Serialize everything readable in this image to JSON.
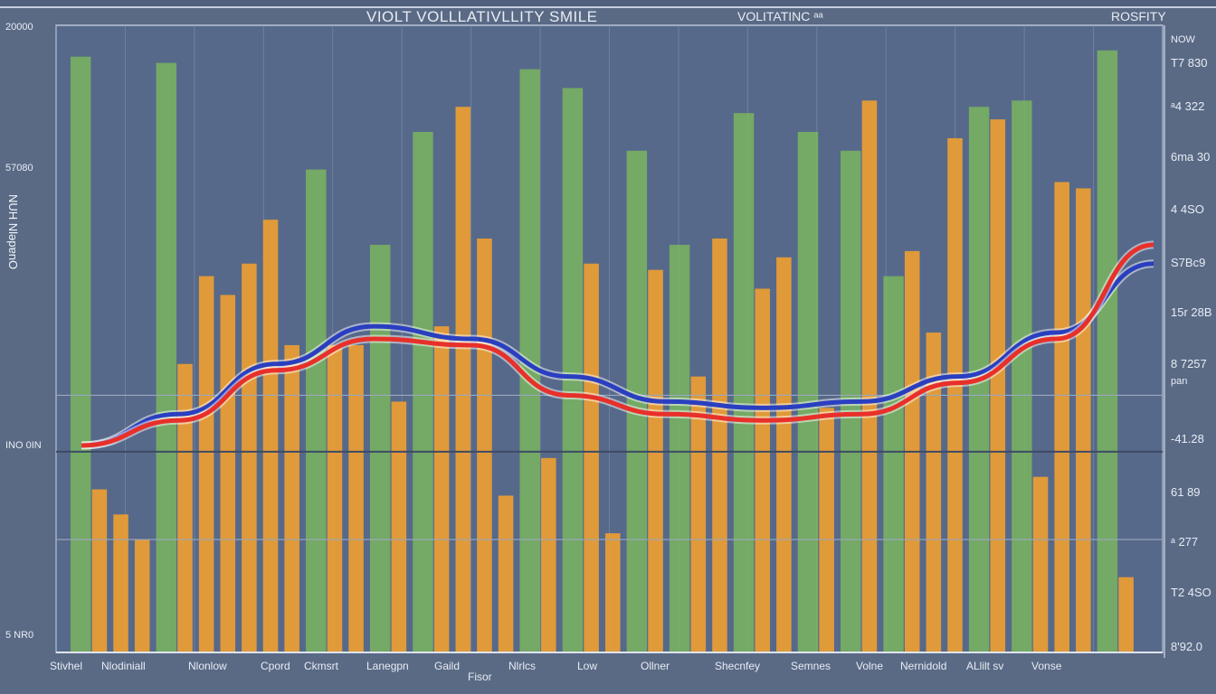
{
  "header": {
    "title": "VIOLT VOLLLATIVLLITY SMILE",
    "subtitle": "VOLITATINC ᵃᵃ",
    "corner_label": "ROSFITY"
  },
  "chart_data": {
    "type": "bar",
    "title": "VIOLT VOLLLATIVLLITY SMILE",
    "xlabel": "Fisor",
    "ylabel": "NUH NlǝpɐnO",
    "ylim": [
      0,
      100
    ],
    "grid": true,
    "categories": [
      "Stivhel",
      "Nlodiniall",
      "Nlonlow",
      "Cpord",
      "Ckmsrt",
      "Lanegpn",
      "Gaild",
      "Nlrlcs",
      "Low",
      "Ollner",
      "Shecnfey",
      "Semnes",
      "Volne",
      "Nernidold",
      "ALlilt sv",
      "Vonse"
    ],
    "left_tick_labels": [
      "20000",
      "57080",
      "INO 0IN",
      "5 NR0"
    ],
    "right_tick_labels": [
      "NOW",
      "T7 830",
      "ᵃ4 322",
      "6ma 30",
      "4 4SO",
      "S7Bc9",
      "15r 28B",
      "8 7257",
      "pan",
      "-41.28",
      "61 89",
      "ᵃ 277",
      "T2 4SO",
      "8'92.0"
    ],
    "bar_colors": {
      "green": "#7fbf5a",
      "orange": "#f0a030"
    },
    "bars": [
      {
        "color": "green",
        "value": 95
      },
      {
        "color": "orange",
        "value": 26
      },
      {
        "color": "orange",
        "value": 22
      },
      {
        "color": "orange",
        "value": 18
      },
      {
        "color": "green",
        "value": 94
      },
      {
        "color": "orange",
        "value": 46
      },
      {
        "color": "orange",
        "value": 60
      },
      {
        "color": "orange",
        "value": 57
      },
      {
        "color": "orange",
        "value": 62
      },
      {
        "color": "orange",
        "value": 69
      },
      {
        "color": "orange",
        "value": 49
      },
      {
        "color": "green",
        "value": 77
      },
      {
        "color": "orange",
        "value": 49
      },
      {
        "color": "orange",
        "value": 49
      },
      {
        "color": "green",
        "value": 65
      },
      {
        "color": "orange",
        "value": 40
      },
      {
        "color": "green",
        "value": 83
      },
      {
        "color": "orange",
        "value": 52
      },
      {
        "color": "orange",
        "value": 87
      },
      {
        "color": "orange",
        "value": 66
      },
      {
        "color": "orange",
        "value": 25
      },
      {
        "color": "green",
        "value": 93
      },
      {
        "color": "orange",
        "value": 31
      },
      {
        "color": "green",
        "value": 90
      },
      {
        "color": "orange",
        "value": 62
      },
      {
        "color": "orange",
        "value": 19
      },
      {
        "color": "green",
        "value": 80
      },
      {
        "color": "orange",
        "value": 61
      },
      {
        "color": "green",
        "value": 65
      },
      {
        "color": "orange",
        "value": 44
      },
      {
        "color": "orange",
        "value": 66
      },
      {
        "color": "green",
        "value": 86
      },
      {
        "color": "orange",
        "value": 58
      },
      {
        "color": "orange",
        "value": 63
      },
      {
        "color": "green",
        "value": 83
      },
      {
        "color": "orange",
        "value": 39
      },
      {
        "color": "green",
        "value": 80
      },
      {
        "color": "orange",
        "value": 88
      },
      {
        "color": "green",
        "value": 60
      },
      {
        "color": "orange",
        "value": 64
      },
      {
        "color": "orange",
        "value": 51
      },
      {
        "color": "orange",
        "value": 82
      },
      {
        "color": "green",
        "value": 87
      },
      {
        "color": "orange",
        "value": 85
      },
      {
        "color": "green",
        "value": 88
      },
      {
        "color": "orange",
        "value": 28
      },
      {
        "color": "orange",
        "value": 75
      },
      {
        "color": "orange",
        "value": 74
      },
      {
        "color": "green",
        "value": 96
      },
      {
        "color": "orange",
        "value": 12
      }
    ],
    "lines": [
      {
        "color": "#2a3fc0",
        "values": [
          33,
          38,
          46,
          52,
          50,
          44,
          40,
          39,
          40,
          44,
          51,
          62
        ]
      },
      {
        "color": "#e8302a",
        "values": [
          33,
          37,
          45,
          50,
          49,
          41,
          38,
          37,
          38,
          43,
          50,
          65
        ]
      }
    ],
    "reference_levels": [
      41,
      32,
      18
    ]
  }
}
